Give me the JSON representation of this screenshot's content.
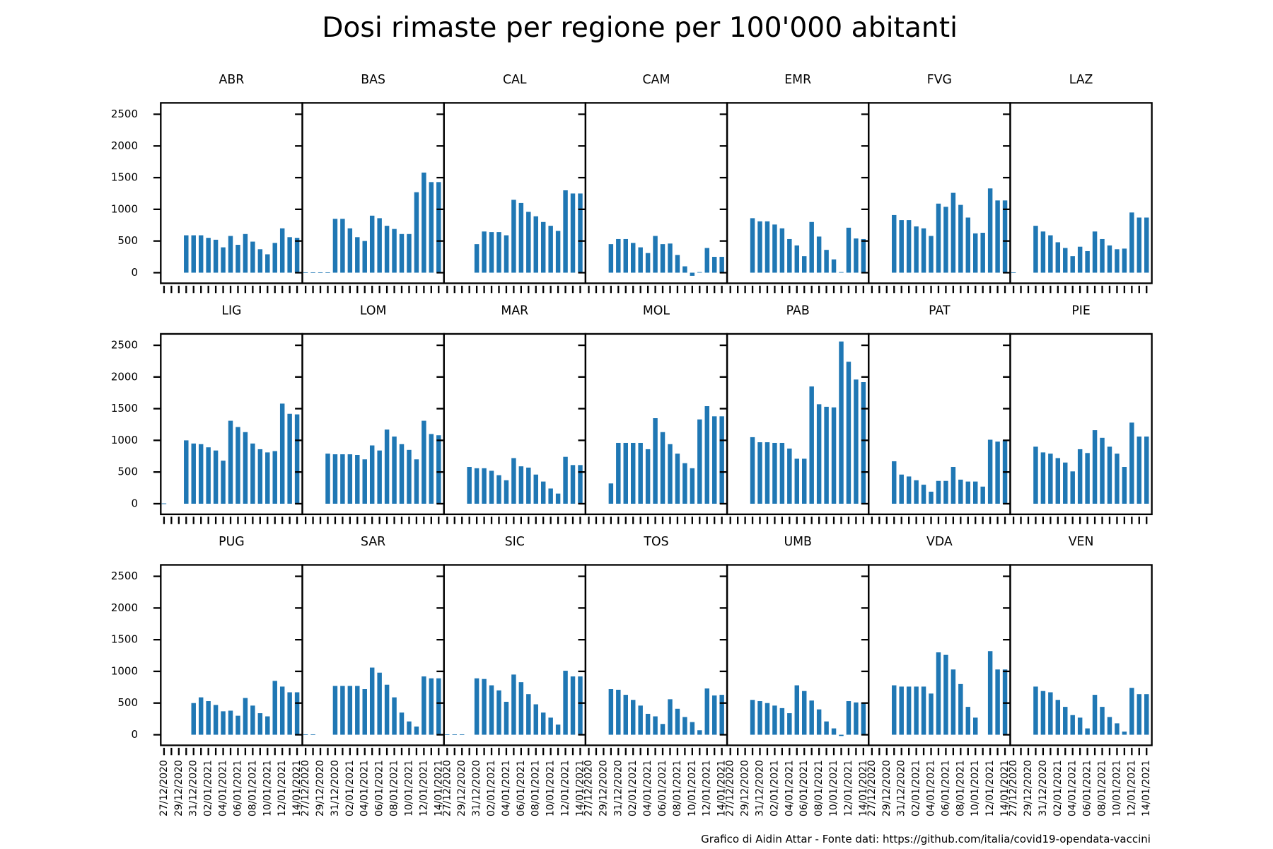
{
  "title": "Dosi rimaste per regione per 100'000 abitanti",
  "note": "Grafico di Aidin Attar - Fonte dati: https://github.com/italia/covid19-opendata-vaccini",
  "categories": [
    "27/12/2020",
    null,
    "29/12/2020",
    null,
    "31/12/2020",
    null,
    "02/01/2021",
    null,
    "04/01/2021",
    null,
    "06/01/2021",
    null,
    "08/01/2021",
    null,
    "10/01/2021",
    null,
    "12/01/2021",
    null,
    "14/01/2021"
  ],
  "ylim": [
    -167,
    2680
  ],
  "yticks": [
    0,
    500,
    1000,
    1500,
    2000,
    2500
  ],
  "color": "#1f77b4",
  "chart_data": [
    {
      "type": "bar",
      "title": "ABR",
      "values": [
        null,
        null,
        null,
        590,
        590,
        590,
        550,
        520,
        400,
        580,
        440,
        610,
        490,
        370,
        290,
        470,
        700,
        560,
        550
      ]
    },
    {
      "type": "bar",
      "title": "BAS",
      "values": [
        5,
        5,
        5,
        5,
        850,
        850,
        700,
        560,
        500,
        900,
        860,
        740,
        690,
        610,
        610,
        1270,
        1580,
        1430,
        1430
      ]
    },
    {
      "type": "bar",
      "title": "CAL",
      "values": [
        null,
        null,
        null,
        null,
        450,
        650,
        640,
        640,
        590,
        1150,
        1100,
        960,
        890,
        800,
        740,
        660,
        1300,
        1250,
        1250
      ]
    },
    {
      "type": "bar",
      "title": "CAM",
      "values": [
        null,
        null,
        null,
        450,
        530,
        530,
        470,
        400,
        310,
        580,
        450,
        460,
        280,
        100,
        -50,
        10,
        390,
        250,
        250
      ]
    },
    {
      "type": "bar",
      "title": "EMR",
      "values": [
        null,
        null,
        null,
        860,
        810,
        810,
        760,
        700,
        530,
        430,
        260,
        800,
        570,
        360,
        210,
        10,
        710,
        540,
        530
      ]
    },
    {
      "type": "bar",
      "title": "FVG",
      "values": [
        null,
        null,
        null,
        910,
        830,
        830,
        730,
        700,
        580,
        1090,
        1040,
        1260,
        1070,
        870,
        620,
        630,
        1330,
        1140,
        1140
      ]
    },
    {
      "type": "bar",
      "title": "LAZ",
      "values": [
        5,
        null,
        null,
        740,
        650,
        590,
        480,
        390,
        260,
        410,
        340,
        650,
        530,
        430,
        370,
        380,
        950,
        870,
        870
      ]
    },
    {
      "type": "bar",
      "title": "LIG",
      "values": [
        5,
        null,
        null,
        1000,
        950,
        940,
        890,
        840,
        680,
        1310,
        1210,
        1130,
        950,
        860,
        810,
        830,
        1580,
        1420,
        1410
      ]
    },
    {
      "type": "bar",
      "title": "LOM",
      "values": [
        null,
        null,
        null,
        790,
        780,
        780,
        780,
        770,
        700,
        920,
        840,
        1170,
        1060,
        940,
        850,
        700,
        1310,
        1100,
        1080
      ]
    },
    {
      "type": "bar",
      "title": "MAR",
      "values": [
        null,
        null,
        null,
        580,
        560,
        560,
        520,
        450,
        370,
        720,
        590,
        570,
        460,
        350,
        240,
        160,
        740,
        610,
        610
      ]
    },
    {
      "type": "bar",
      "title": "MOL",
      "values": [
        null,
        null,
        null,
        320,
        960,
        960,
        960,
        960,
        860,
        1350,
        1130,
        940,
        790,
        640,
        560,
        1330,
        1540,
        1380,
        1380
      ]
    },
    {
      "type": "bar",
      "title": "PAB",
      "values": [
        null,
        null,
        null,
        1050,
        970,
        970,
        960,
        960,
        870,
        710,
        710,
        1850,
        1570,
        1530,
        1520,
        2560,
        2240,
        1960,
        1920
      ]
    },
    {
      "type": "bar",
      "title": "PAT",
      "values": [
        null,
        null,
        null,
        670,
        460,
        430,
        370,
        300,
        190,
        360,
        360,
        580,
        380,
        350,
        350,
        270,
        1010,
        980,
        1000
      ]
    },
    {
      "type": "bar",
      "title": "PIE",
      "values": [
        null,
        null,
        null,
        900,
        810,
        790,
        720,
        650,
        510,
        860,
        800,
        1160,
        1040,
        900,
        790,
        580,
        1280,
        1060,
        1060
      ]
    },
    {
      "type": "bar",
      "title": "PUG",
      "values": [
        null,
        null,
        null,
        null,
        500,
        590,
        530,
        470,
        370,
        380,
        300,
        580,
        460,
        340,
        290,
        850,
        760,
        670,
        670
      ]
    },
    {
      "type": "bar",
      "title": "SAR",
      "values": [
        5,
        5,
        null,
        null,
        770,
        770,
        770,
        770,
        720,
        1060,
        980,
        790,
        590,
        350,
        210,
        130,
        920,
        890,
        890
      ]
    },
    {
      "type": "bar",
      "title": "SIC",
      "values": [
        5,
        5,
        5,
        null,
        890,
        880,
        780,
        700,
        520,
        950,
        830,
        640,
        480,
        350,
        270,
        160,
        1010,
        920,
        920
      ]
    },
    {
      "type": "bar",
      "title": "TOS",
      "values": [
        null,
        null,
        null,
        720,
        710,
        630,
        550,
        460,
        330,
        290,
        170,
        560,
        410,
        280,
        200,
        70,
        730,
        620,
        630
      ]
    },
    {
      "type": "bar",
      "title": "UMB",
      "values": [
        null,
        null,
        null,
        550,
        530,
        500,
        460,
        420,
        340,
        780,
        690,
        540,
        400,
        210,
        100,
        -20,
        530,
        510,
        510
      ]
    },
    {
      "type": "bar",
      "title": "VDA",
      "values": [
        null,
        null,
        null,
        780,
        760,
        760,
        760,
        760,
        650,
        1300,
        1260,
        1030,
        800,
        440,
        270,
        null,
        1320,
        1030,
        1030
      ]
    },
    {
      "type": "bar",
      "title": "VEN",
      "values": [
        null,
        null,
        null,
        760,
        690,
        670,
        550,
        440,
        310,
        270,
        100,
        630,
        440,
        280,
        180,
        50,
        740,
        640,
        640
      ]
    }
  ]
}
